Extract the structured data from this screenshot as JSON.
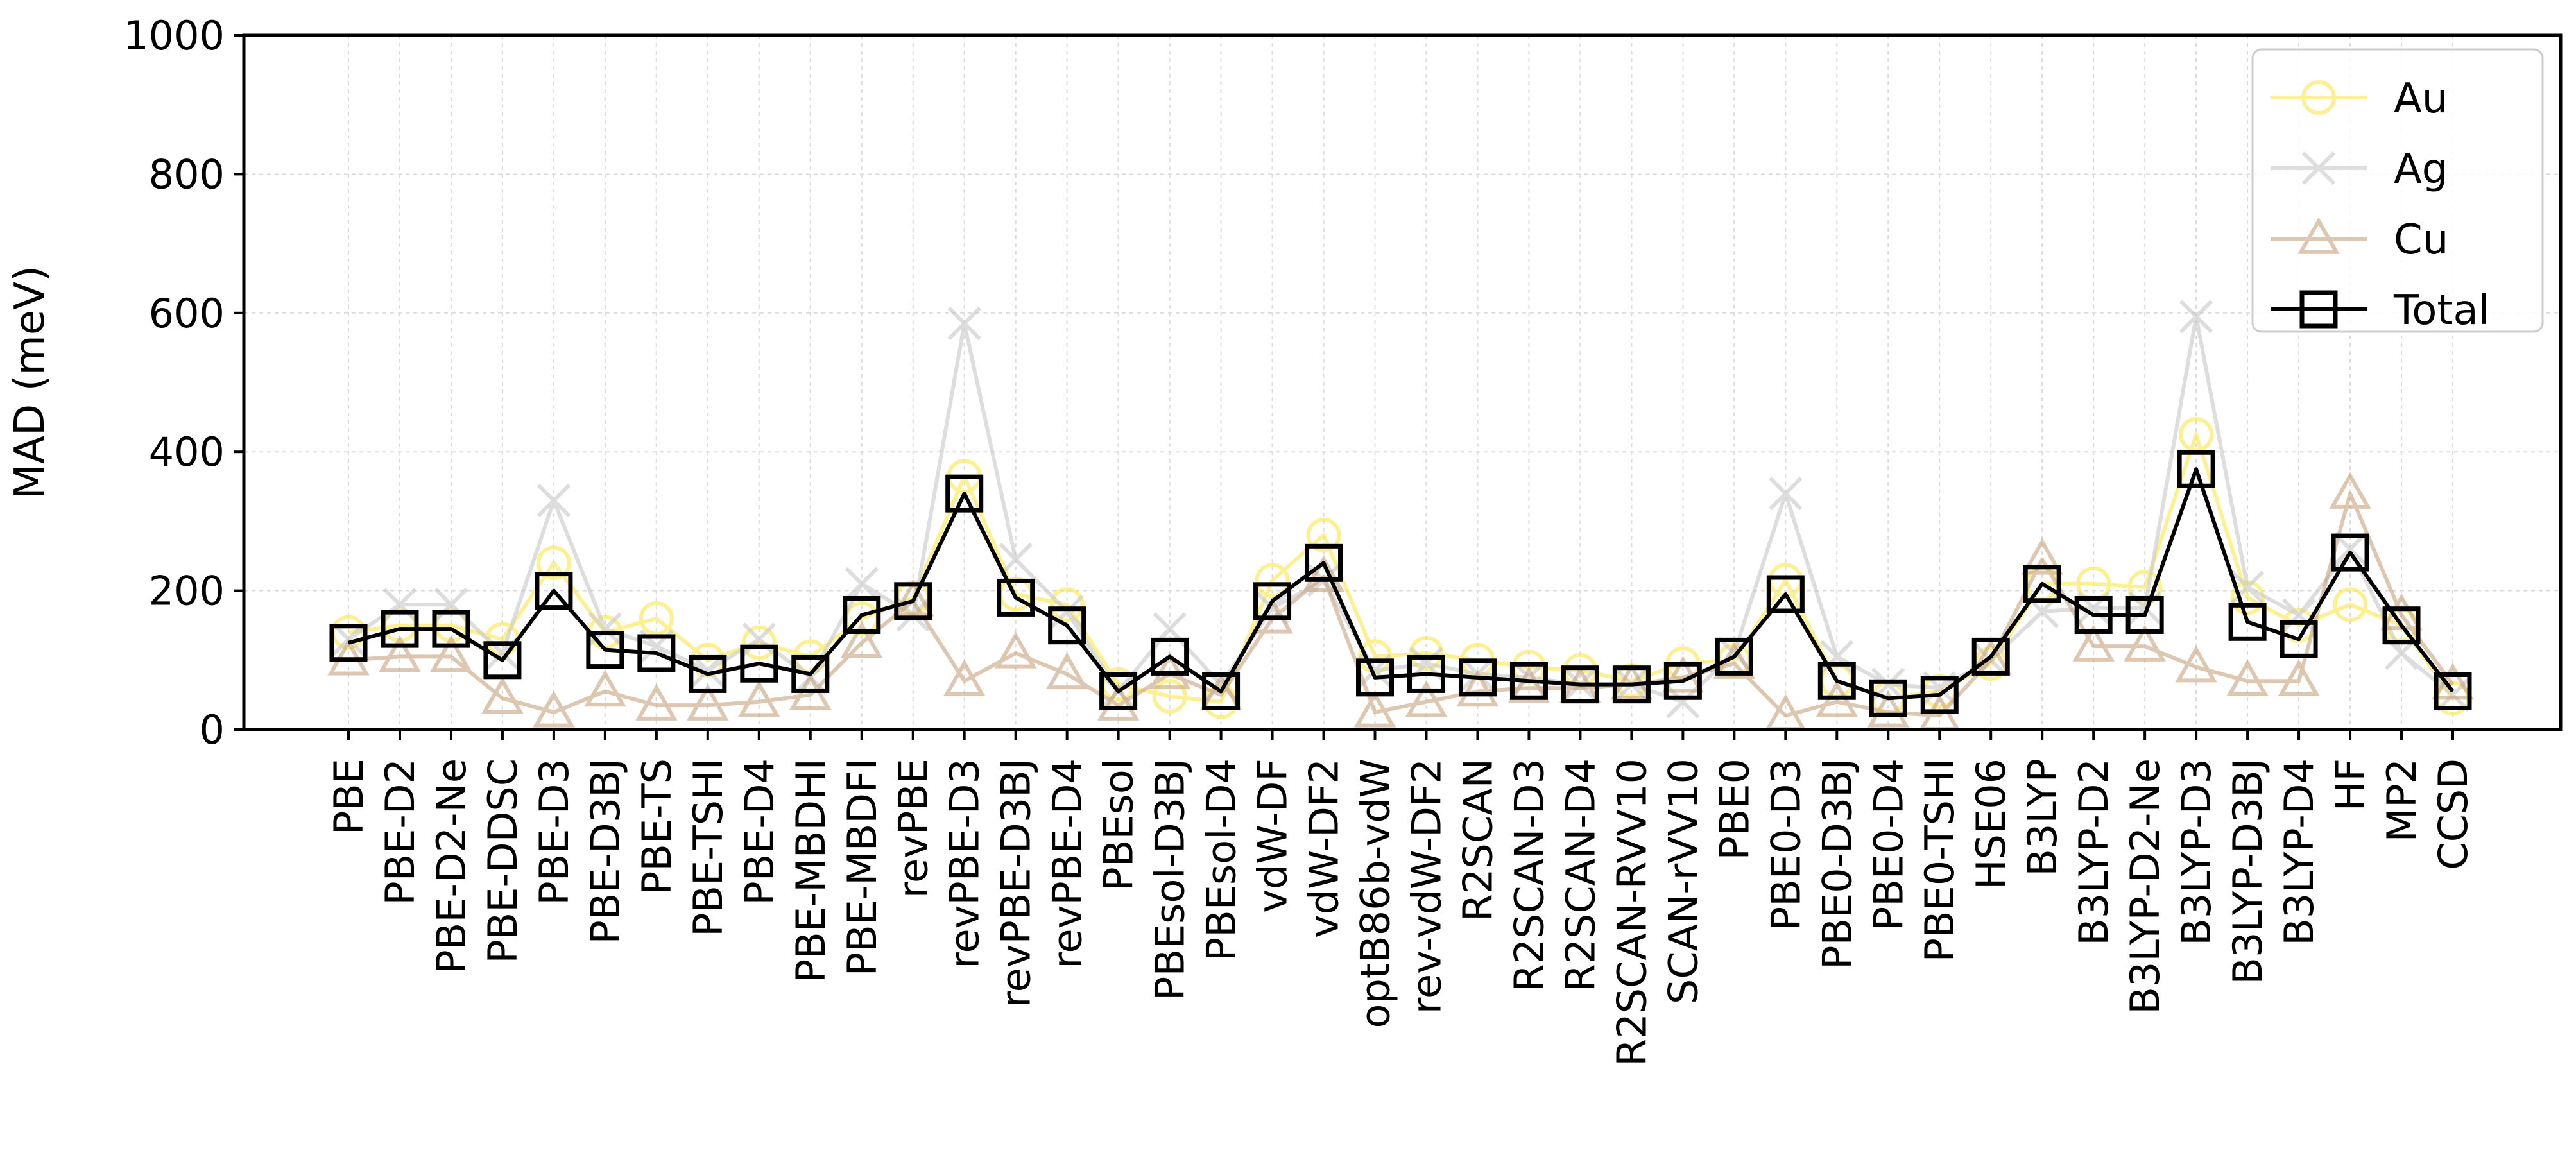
{
  "chart_data": {
    "type": "line",
    "title": "",
    "xlabel": "",
    "ylabel": "MAD (meV)",
    "ylim": [
      0,
      1000
    ],
    "yticks": [
      "0",
      "200",
      "400",
      "600",
      "800",
      "1000"
    ],
    "grid": true,
    "legend_position": "top-right",
    "categories": [
      "PBE",
      "PBE-D2",
      "PBE-D2-Ne",
      "PBE-DDSC",
      "PBE-D3",
      "PBE-D3BJ",
      "PBE-TS",
      "PBE-TSHI",
      "PBE-D4",
      "PBE-MBDHI",
      "PBE-MBDFI",
      "revPBE",
      "revPBE-D3",
      "revPBE-D3BJ",
      "revPBE-D4",
      "PBEsol",
      "PBEsol-D3BJ",
      "PBEsol-D4",
      "vdW-DF",
      "vdW-DF2",
      "optB86b-vdW",
      "rev-vdW-DF2",
      "R2SCAN",
      "R2SCAN-D3",
      "R2SCAN-D4",
      "R2SCAN-RVV10",
      "SCAN-rVV10",
      "PBE0",
      "PBE0-D3",
      "PBE0-D3BJ",
      "PBE0-D4",
      "PBE0-TSHI",
      "HSE06",
      "B3LYP",
      "B3LYP-D2",
      "B3LYP-D2-Ne",
      "B3LYP-D3",
      "B3LYP-D3BJ",
      "B3LYP-D4",
      "HF",
      "MP2",
      "CCSD"
    ],
    "series": [
      {
        "name": "Au",
        "marker": "circle",
        "color": "#fde74c",
        "values": [
          140,
          150,
          150,
          130,
          240,
          140,
          160,
          100,
          125,
          105,
          160,
          190,
          365,
          195,
          180,
          65,
          48,
          40,
          215,
          280,
          105,
          110,
          100,
          90,
          85,
          70,
          95,
          100,
          215,
          70,
          45,
          55,
          95,
          210,
          210,
          205,
          425,
          190,
          150,
          180,
          150,
          45
        ]
      },
      {
        "name": "Ag",
        "marker": "x",
        "color": "#c8c8c8",
        "values": [
          130,
          180,
          180,
          110,
          330,
          145,
          120,
          85,
          130,
          75,
          210,
          165,
          585,
          245,
          170,
          55,
          145,
          65,
          175,
          215,
          85,
          95,
          80,
          75,
          65,
          65,
          40,
          110,
          340,
          105,
          65,
          60,
          100,
          170,
          175,
          175,
          595,
          205,
          165,
          260,
          110,
          50
        ]
      },
      {
        "name": "Cu",
        "marker": "triangle",
        "color": "#c8a27c",
        "values": [
          100,
          105,
          105,
          45,
          25,
          55,
          35,
          35,
          40,
          50,
          125,
          185,
          70,
          110,
          80,
          35,
          80,
          50,
          160,
          220,
          25,
          40,
          55,
          60,
          60,
          65,
          75,
          95,
          20,
          40,
          25,
          20,
          100,
          245,
          120,
          120,
          90,
          70,
          70,
          340,
          165,
          65
        ]
      },
      {
        "name": "Total",
        "marker": "square",
        "color": "#000000",
        "values": [
          125,
          145,
          145,
          100,
          200,
          115,
          110,
          80,
          95,
          80,
          165,
          185,
          340,
          190,
          150,
          55,
          105,
          55,
          185,
          240,
          75,
          80,
          75,
          70,
          65,
          65,
          70,
          105,
          195,
          70,
          45,
          50,
          105,
          210,
          165,
          165,
          375,
          155,
          130,
          255,
          150,
          55
        ]
      }
    ]
  }
}
